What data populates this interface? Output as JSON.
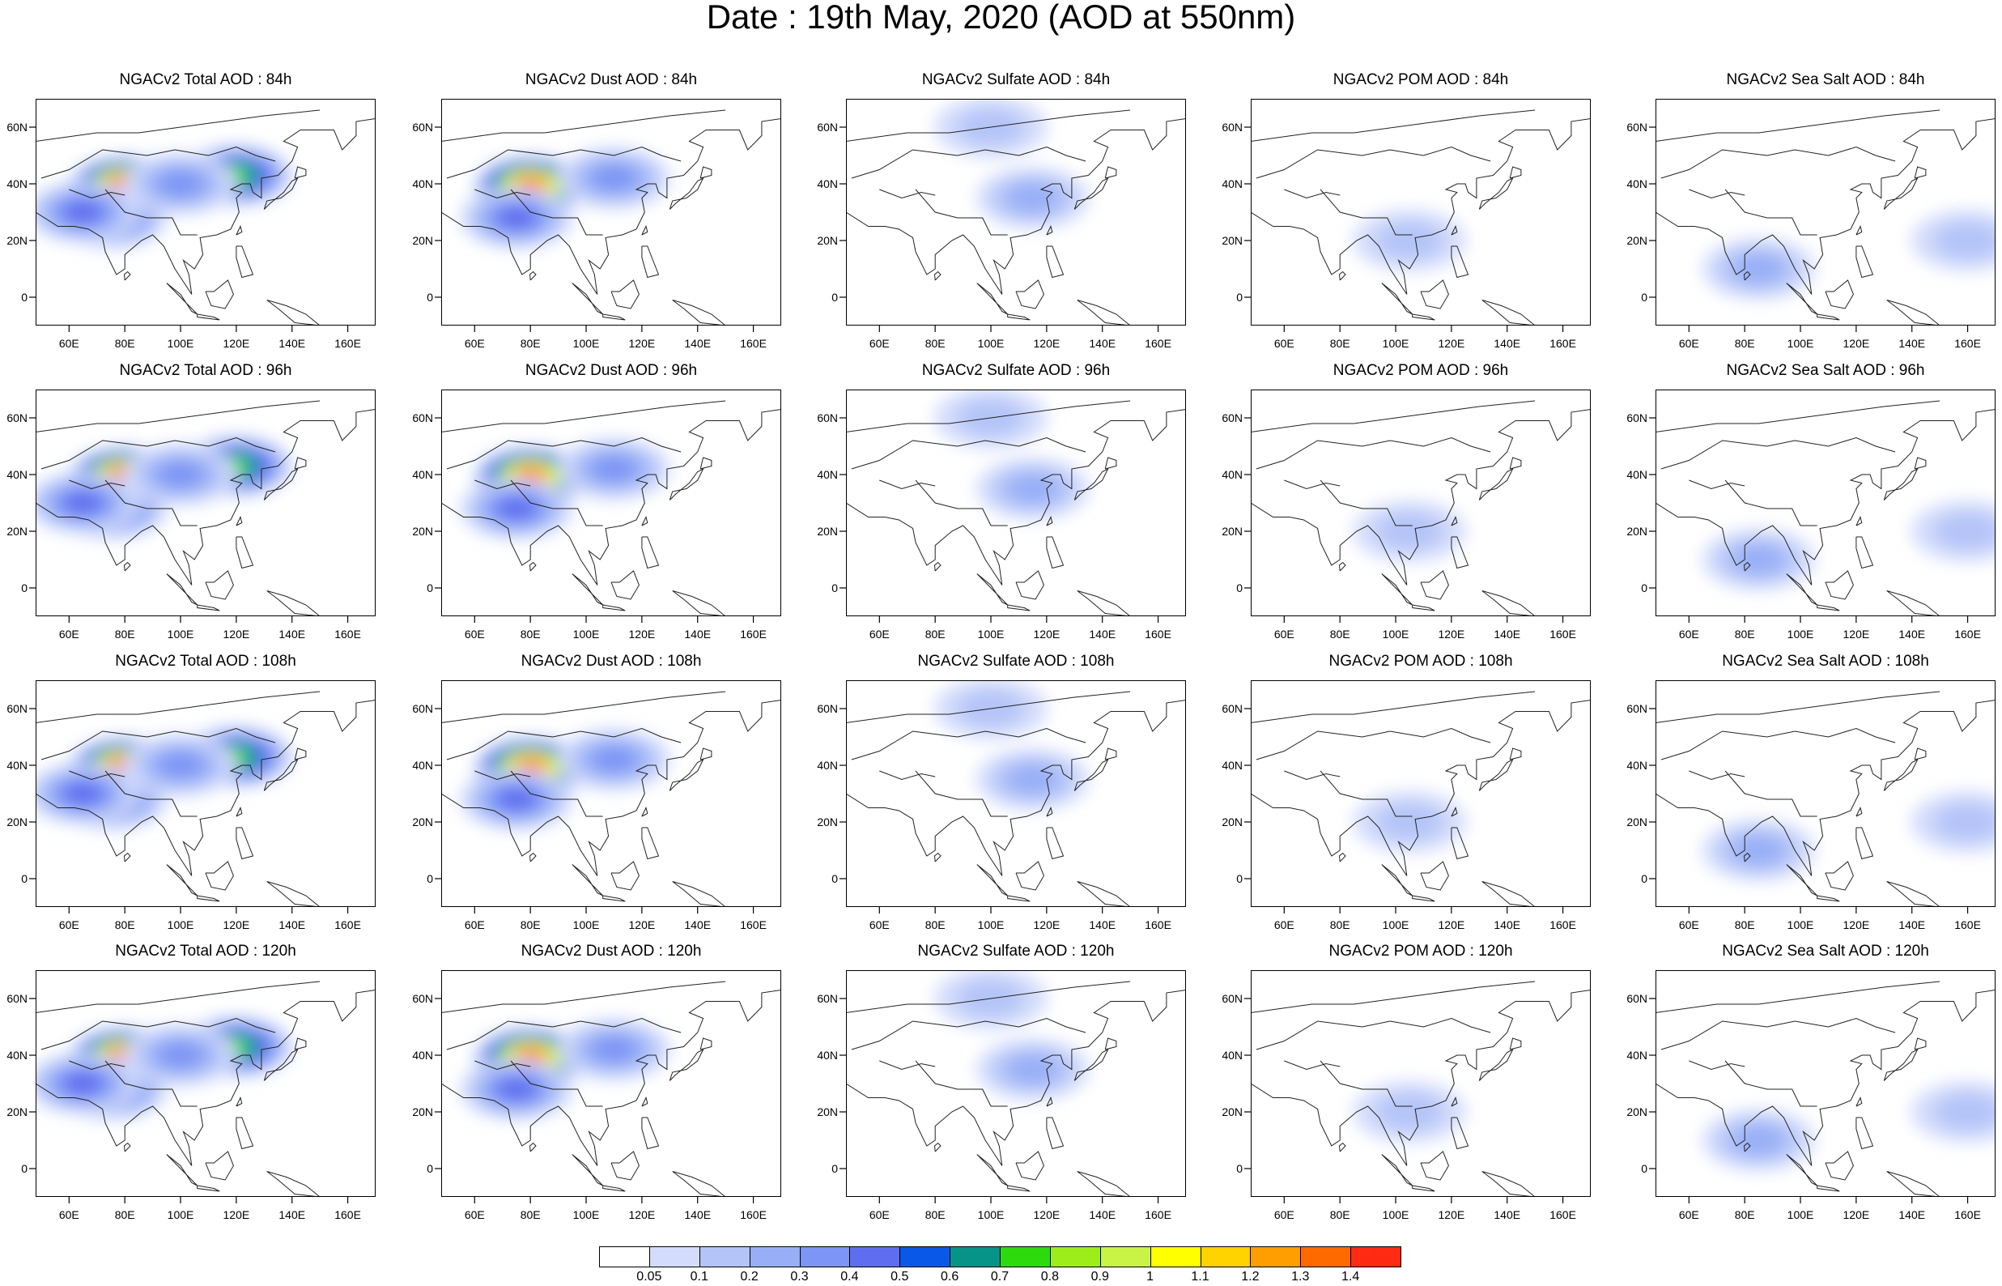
{
  "title": "Date : 19th May, 2020 (AOD at 550nm)",
  "axes": {
    "lon_ticks": [
      "60E",
      "80E",
      "100E",
      "120E",
      "140E",
      "160E"
    ],
    "lat_ticks": [
      "60N",
      "40N",
      "20N",
      "0"
    ],
    "lon_values": [
      60,
      80,
      100,
      120,
      140,
      160
    ],
    "lat_values": [
      60,
      40,
      20,
      0
    ],
    "lon_range": [
      48,
      170
    ],
    "lat_range": [
      -10,
      70
    ]
  },
  "panels": [
    {
      "title": "NGACv2 Total AOD : 84h",
      "field": "total",
      "lead": 84
    },
    {
      "title": "NGACv2 Dust AOD : 84h",
      "field": "dust",
      "lead": 84
    },
    {
      "title": "NGACv2 Sulfate AOD : 84h",
      "field": "sulfate",
      "lead": 84
    },
    {
      "title": "NGACv2 POM AOD : 84h",
      "field": "pom",
      "lead": 84
    },
    {
      "title": "NGACv2 Sea Salt AOD : 84h",
      "field": "seasalt",
      "lead": 84
    },
    {
      "title": "NGACv2 Total AOD : 96h",
      "field": "total",
      "lead": 96
    },
    {
      "title": "NGACv2 Dust AOD : 96h",
      "field": "dust",
      "lead": 96
    },
    {
      "title": "NGACv2 Sulfate AOD : 96h",
      "field": "sulfate",
      "lead": 96
    },
    {
      "title": "NGACv2 POM AOD : 96h",
      "field": "pom",
      "lead": 96
    },
    {
      "title": "NGACv2 Sea Salt AOD : 96h",
      "field": "seasalt",
      "lead": 96
    },
    {
      "title": "NGACv2 Total AOD : 108h",
      "field": "total",
      "lead": 108
    },
    {
      "title": "NGACv2 Dust AOD : 108h",
      "field": "dust",
      "lead": 108
    },
    {
      "title": "NGACv2 Sulfate AOD : 108h",
      "field": "sulfate",
      "lead": 108
    },
    {
      "title": "NGACv2 POM AOD : 108h",
      "field": "pom",
      "lead": 108
    },
    {
      "title": "NGACv2 Sea Salt AOD : 108h",
      "field": "seasalt",
      "lead": 108
    },
    {
      "title": "NGACv2 Total AOD : 120h",
      "field": "total",
      "lead": 120
    },
    {
      "title": "NGACv2 Dust AOD : 120h",
      "field": "dust",
      "lead": 120
    },
    {
      "title": "NGACv2 Sulfate AOD : 120h",
      "field": "sulfate",
      "lead": 120
    },
    {
      "title": "NGACv2 POM AOD : 120h",
      "field": "pom",
      "lead": 120
    },
    {
      "title": "NGACv2 Sea Salt  AOD : 120h",
      "field": "seasalt",
      "lead": 120
    }
  ],
  "colorbar": {
    "labels": [
      "0.05",
      "0.1",
      "0.2",
      "0.3",
      "0.4",
      "0.5",
      "0.6",
      "0.7",
      "0.8",
      "0.9",
      "1",
      "1.1",
      "1.2",
      "1.3",
      "1.4"
    ],
    "colors": [
      "#ffffff",
      "#d3dcfb",
      "#b4c4f8",
      "#98aff7",
      "#7d95f4",
      "#5f6ef0",
      "#0a58e8",
      "#079488",
      "#2ddb0c",
      "#9ded1a",
      "#c9f345",
      "#ffff00",
      "#ffd200",
      "#ff9e00",
      "#ff6a00",
      "#ff2a12"
    ]
  },
  "plumes": {
    "total": [
      {
        "lon": 80,
        "lat": 39,
        "value": 1.4
      },
      {
        "lon": 120,
        "lat": 43,
        "value": 0.7
      },
      {
        "lon": 75,
        "lat": 28,
        "value": 0.5
      },
      {
        "lon": 65,
        "lat": 30,
        "value": 0.4
      },
      {
        "lon": 100,
        "lat": 40,
        "value": 0.3
      }
    ],
    "dust": [
      {
        "lon": 80,
        "lat": 39,
        "value": 1.3
      },
      {
        "lon": 75,
        "lat": 28,
        "value": 0.4
      },
      {
        "lon": 110,
        "lat": 42,
        "value": 0.3
      }
    ],
    "sulfate": [
      {
        "lon": 115,
        "lat": 35,
        "value": 0.2
      },
      {
        "lon": 100,
        "lat": 60,
        "value": 0.1
      }
    ],
    "pom": [
      {
        "lon": 105,
        "lat": 20,
        "value": 0.1
      }
    ],
    "seasalt": [
      {
        "lon": 85,
        "lat": 10,
        "value": 0.2
      },
      {
        "lon": 160,
        "lat": 20,
        "value": 0.1
      }
    ]
  }
}
